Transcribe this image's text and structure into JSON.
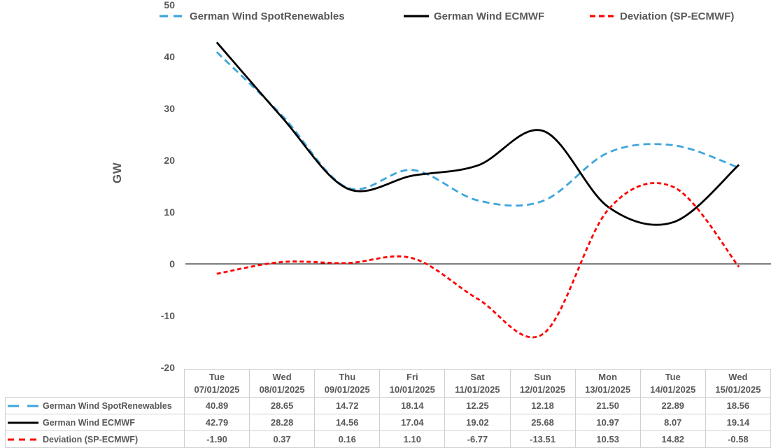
{
  "colors": {
    "text": "#595959",
    "table_border": "#D0D0D0",
    "axis": "#000000",
    "spot_blue": "#3FA5DC",
    "ecmwf_black": "#000000",
    "deviation_red": "#FF0000"
  },
  "chart_data": {
    "type": "line",
    "title": "",
    "xlabel": "",
    "ylabel": "GW",
    "ylim": [
      -20,
      50
    ],
    "yticks": [
      50,
      40,
      30,
      20,
      10,
      0,
      -10,
      -20
    ],
    "grid": false,
    "legend_position": "top",
    "line_shape": "smooth",
    "categories": [
      {
        "day": "Tue",
        "date": "07/01/2025"
      },
      {
        "day": "Wed",
        "date": "08/01/2025"
      },
      {
        "day": "Thu",
        "date": "09/01/2025"
      },
      {
        "day": "Fri",
        "date": "10/01/2025"
      },
      {
        "day": "Sat",
        "date": "11/01/2025"
      },
      {
        "day": "Sun",
        "date": "12/01/2025"
      },
      {
        "day": "Mon",
        "date": "13/01/2025"
      },
      {
        "day": "Tue",
        "date": "14/01/2025"
      },
      {
        "day": "Wed",
        "date": "15/01/2025"
      }
    ],
    "series": [
      {
        "name": "German Wind SpotRenewables",
        "color": "#3FA5DC",
        "line_style": "dashed",
        "values": [
          40.89,
          28.65,
          14.72,
          18.14,
          12.25,
          12.18,
          21.5,
          22.89,
          18.56
        ]
      },
      {
        "name": "German Wind ECMWF",
        "color": "#000000",
        "line_style": "solid",
        "values": [
          42.79,
          28.28,
          14.56,
          17.04,
          19.02,
          25.68,
          10.97,
          8.07,
          19.14
        ]
      },
      {
        "name": "Deviation (SP-ECMWF)",
        "color": "#FF0000",
        "line_style": "dashed-short",
        "values": [
          -1.9,
          0.37,
          0.16,
          1.1,
          -6.77,
          -13.51,
          10.53,
          14.82,
          -0.58
        ]
      }
    ]
  }
}
